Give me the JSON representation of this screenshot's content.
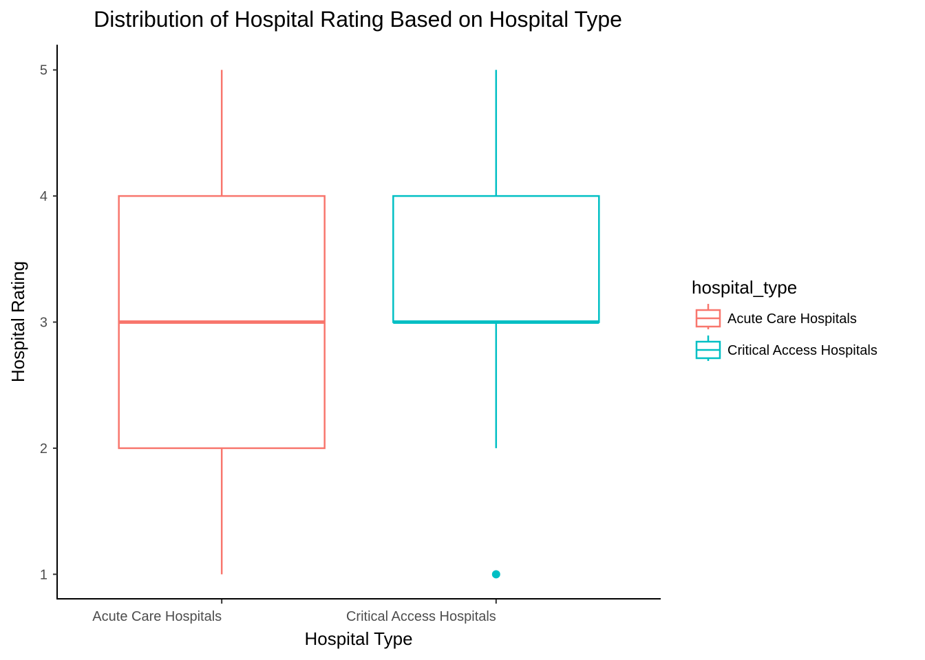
{
  "chart_data": {
    "type": "boxplot",
    "title": "Distribution of Hospital Rating Based on Hospital Type",
    "xlabel": "Hospital Type",
    "ylabel": "Hospital Rating",
    "categories": [
      "Acute Care Hospitals",
      "Critical Access Hospitals"
    ],
    "ylim": [
      0.8,
      5.2
    ],
    "yticks": [
      1,
      2,
      3,
      4,
      5
    ],
    "grid": false,
    "legend": {
      "title": "hospital_type",
      "placement": "right",
      "entries": [
        "Acute Care Hospitals",
        "Critical Access Hospitals"
      ]
    },
    "series": [
      {
        "name": "Acute Care Hospitals",
        "color": "#F8766D",
        "min": 1,
        "q1": 2,
        "median": 3,
        "q3": 4,
        "max": 5,
        "outliers": []
      },
      {
        "name": "Critical Access Hospitals",
        "color": "#00BFC4",
        "min": 2,
        "q1": 3,
        "median": 3,
        "q3": 4,
        "max": 5,
        "outliers": [
          1
        ]
      }
    ]
  }
}
